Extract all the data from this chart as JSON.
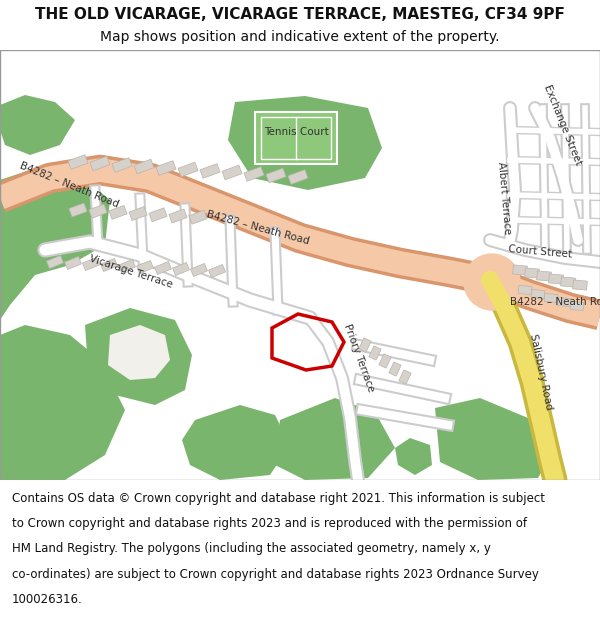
{
  "title_line1": "THE OLD VICARAGE, VICARAGE TERRACE, MAESTEG, CF34 9PF",
  "title_line2": "Map shows position and indicative extent of the property.",
  "footer_lines": [
    "Contains OS data © Crown copyright and database right 2021. This information is subject",
    "to Crown copyright and database rights 2023 and is reproduced with the permission of",
    "HM Land Registry. The polygons (including the associated geometry, namely x, y",
    "co-ordinates) are subject to Crown copyright and database rights 2023 Ordnance Survey",
    "100026316."
  ],
  "map_bg": "#f2f0eb",
  "green_color": "#7ab56e",
  "road_main_color": "#f5c8a8",
  "road_main_stroke": "#d9956b",
  "road_yellow_color": "#f0e06a",
  "road_yellow_stroke": "#c8b840",
  "road_minor_color": "#ffffff",
  "road_minor_stroke": "#cccccc",
  "building_color": "#d6d2cb",
  "building_stroke": "#b8b4ac",
  "plot_outline_color": "#cc0000",
  "map_border_color": "#999999",
  "tennis_green": "#8ec87a"
}
